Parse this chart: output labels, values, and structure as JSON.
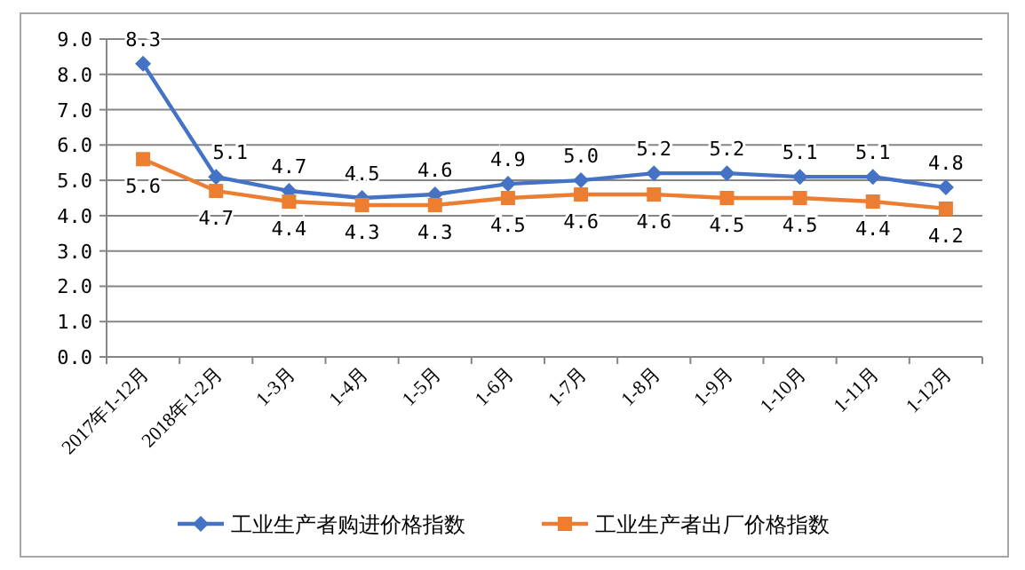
{
  "chart_data": {
    "type": "line",
    "categories": [
      "2017年1-12月",
      "2018年1-2月",
      "1-3月",
      "1-4月",
      "1-5月",
      "1-6月",
      "1-7月",
      "1-8月",
      "1-9月",
      "1-10月",
      "1-11月",
      "1-12月"
    ],
    "series": [
      {
        "name": "工业生产者购进价格指数",
        "color": "#4472c4",
        "marker": "diamond",
        "values": [
          8.3,
          5.1,
          4.7,
          4.5,
          4.6,
          4.9,
          5.0,
          5.2,
          5.2,
          5.1,
          5.1,
          4.8
        ],
        "value_labels": [
          "8.3",
          "5.1",
          "4.7",
          "4.5",
          "4.6",
          "4.9",
          "5.0",
          "5.2",
          "5.2",
          "5.1",
          "5.1",
          "4.8"
        ]
      },
      {
        "name": "工业生产者出厂价格指数",
        "color": "#ed7d31",
        "marker": "square",
        "values": [
          5.6,
          4.7,
          4.4,
          4.3,
          4.3,
          4.5,
          4.6,
          4.6,
          4.5,
          4.5,
          4.4,
          4.2
        ],
        "value_labels": [
          "5.6",
          "4.7",
          "4.4",
          "4.3",
          "4.3",
          "4.5",
          "4.6",
          "4.6",
          "4.5",
          "4.5",
          "4.4",
          "4.2"
        ]
      }
    ],
    "ylim": [
      0,
      9
    ],
    "yticks": [
      {
        "value": 0,
        "label": "0.0"
      },
      {
        "value": 1,
        "label": "1.0"
      },
      {
        "value": 2,
        "label": "2.0"
      },
      {
        "value": 3,
        "label": "3.0"
      },
      {
        "value": 4,
        "label": "4.0"
      },
      {
        "value": 5,
        "label": "5.0"
      },
      {
        "value": 6,
        "label": "6.0"
      },
      {
        "value": 7,
        "label": "7.0"
      },
      {
        "value": 8,
        "label": "8.0"
      },
      {
        "value": 9,
        "label": "9.0"
      }
    ],
    "grid": "y",
    "legend": "bottom"
  }
}
